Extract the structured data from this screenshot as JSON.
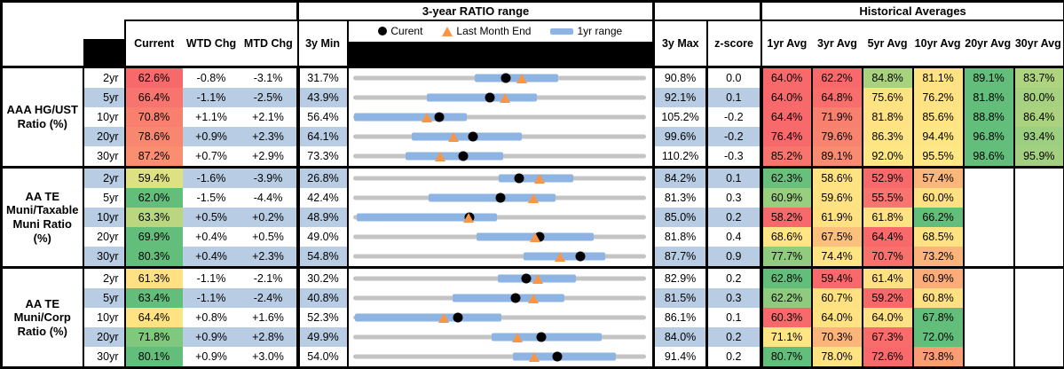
{
  "header": {
    "chart_title": "3-year RATIO range",
    "historical_title": "Historical Averages",
    "col_current": "Current",
    "col_wtd": "WTD Chg",
    "col_mtd": "MTD Chg",
    "col_min": "3y Min",
    "col_max": "3y Max",
    "col_z": "z-score",
    "avg_cols": [
      "1yr Avg",
      "3yr Avg",
      "5yr Avg",
      "10yr Avg",
      "20yr Avg",
      "30yr Avg"
    ],
    "legend": {
      "current": "Curent",
      "last_month": "Last Month End",
      "range": "1yr range"
    }
  },
  "colors": {
    "stripe_blue": "#B8CCE4",
    "range_bar_blue": "#8EB4E3",
    "marker_orange": "#F79646",
    "track_gray": "#C4C4C4",
    "scale_red": "#F8696B",
    "scale_yellow": "#FFE383",
    "scale_green": "#63BE7B"
  },
  "chart_data": {
    "type": "table",
    "embedded_chart_type": "range-bullet (gray = 3y range, blue bar = 1yr range, black dot = current, orange triangle = last month end)",
    "title": "3-year RATIO range",
    "avg_keys": [
      "1yr",
      "3yr",
      "5yr",
      "10yr",
      "20yr",
      "30yr"
    ],
    "groups": [
      {
        "label": "AAA HG/UST Ratio (%)",
        "rows": [
          {
            "tenor": "2yr",
            "current": "62.6%",
            "current_color": "#F8696B",
            "wtd": "-0.8%",
            "mtd": "-3.1%",
            "min": "31.7%",
            "max": "90.8%",
            "z": "0.0",
            "stripe": false,
            "range": {
              "min": 31.7,
              "max": 90.8,
              "bar_lo": 56.3,
              "bar_hi": 73.1,
              "current": 62.6,
              "last_month": 65.7
            },
            "avgs": [
              {
                "v": "64.0%",
                "c": "#F8696B"
              },
              {
                "v": "62.2%",
                "c": "#F8696B"
              },
              {
                "v": "84.8%",
                "c": "#A9D27F"
              },
              {
                "v": "81.1%",
                "c": "#FFE283"
              },
              {
                "v": "89.1%",
                "c": "#63BE7B"
              },
              {
                "v": "83.7%",
                "c": "#AFD47F"
              }
            ]
          },
          {
            "tenor": "5yr",
            "current": "66.4%",
            "current_color": "#F8746E",
            "wtd": "-1.1%",
            "mtd": "-2.5%",
            "min": "43.9%",
            "max": "92.1%",
            "z": "0.1",
            "stripe": true,
            "range": {
              "min": 43.9,
              "max": 92.1,
              "bar_lo": 56.1,
              "bar_hi": 74.1,
              "current": 66.4,
              "last_month": 68.9
            },
            "avgs": [
              {
                "v": "64.0%",
                "c": "#F8696B"
              },
              {
                "v": "64.8%",
                "c": "#F86E6C"
              },
              {
                "v": "75.6%",
                "c": "#FFE383"
              },
              {
                "v": "76.2%",
                "c": "#FFE283"
              },
              {
                "v": "81.8%",
                "c": "#63BE7B"
              },
              {
                "v": "80.0%",
                "c": "#A5D180"
              }
            ]
          },
          {
            "tenor": "10yr",
            "current": "70.8%",
            "current_color": "#F9806F",
            "wtd": "+1.1%",
            "mtd": "+2.1%",
            "min": "56.4%",
            "max": "105.2%",
            "z": "-0.2",
            "stripe": false,
            "range": {
              "min": 56.4,
              "max": 105.2,
              "bar_lo": 56.6,
              "bar_hi": 75.4,
              "current": 70.8,
              "last_month": 68.7
            },
            "avgs": [
              {
                "v": "64.4%",
                "c": "#F8696B"
              },
              {
                "v": "71.9%",
                "c": "#F8806F"
              },
              {
                "v": "81.8%",
                "c": "#FFE283"
              },
              {
                "v": "85.6%",
                "c": "#FFE483"
              },
              {
                "v": "88.8%",
                "c": "#63BE7B"
              },
              {
                "v": "86.4%",
                "c": "#ABD37F"
              }
            ]
          },
          {
            "tenor": "20yr",
            "current": "78.6%",
            "current_color": "#F98770",
            "wtd": "+0.9%",
            "mtd": "+2.3%",
            "min": "64.1%",
            "max": "99.6%",
            "z": "-0.2",
            "stripe": true,
            "range": {
              "min": 64.1,
              "max": 99.6,
              "bar_lo": 71.2,
              "bar_hi": 84.6,
              "current": 78.6,
              "last_month": 76.3
            },
            "avgs": [
              {
                "v": "76.4%",
                "c": "#F8696B"
              },
              {
                "v": "79.6%",
                "c": "#F8846F"
              },
              {
                "v": "86.3%",
                "c": "#FFE483"
              },
              {
                "v": "94.4%",
                "c": "#FFE684"
              },
              {
                "v": "96.8%",
                "c": "#63BE7B"
              },
              {
                "v": "93.4%",
                "c": "#9CCF80"
              }
            ]
          },
          {
            "tenor": "30yr",
            "current": "87.2%",
            "current_color": "#F98F70",
            "wtd": "+0.7%",
            "mtd": "+2.9%",
            "min": "73.3%",
            "max": "110.2%",
            "z": "-0.3",
            "stripe": false,
            "range": {
              "min": 73.3,
              "max": 110.2,
              "bar_lo": 79.9,
              "bar_hi": 92.2,
              "current": 87.2,
              "last_month": 84.3
            },
            "avgs": [
              {
                "v": "85.2%",
                "c": "#F8756E"
              },
              {
                "v": "89.1%",
                "c": "#F98C70"
              },
              {
                "v": "92.0%",
                "c": "#FFE883"
              },
              {
                "v": "95.5%",
                "c": "#FFE784"
              },
              {
                "v": "98.6%",
                "c": "#63BE7B"
              },
              {
                "v": "95.9%",
                "c": "#A3D080"
              }
            ]
          }
        ]
      },
      {
        "label": "AA TE Muni/Taxable Muni Ratio (%)",
        "rows": [
          {
            "tenor": "2yr",
            "current": "59.4%",
            "current_color": "#DEE182",
            "wtd": "-1.6%",
            "mtd": "-3.9%",
            "min": "26.8%",
            "max": "84.2%",
            "z": "0.1",
            "stripe": true,
            "range": {
              "min": 26.8,
              "max": 84.2,
              "bar_lo": 55.3,
              "bar_hi": 70.0,
              "current": 59.4,
              "last_month": 63.3
            },
            "avgs": [
              {
                "v": "62.3%",
                "c": "#68C07C"
              },
              {
                "v": "58.6%",
                "c": "#FFE383"
              },
              {
                "v": "52.9%",
                "c": "#F8696B"
              },
              {
                "v": "57.4%",
                "c": "#FBB67B"
              },
              null,
              null
            ]
          },
          {
            "tenor": "5yr",
            "current": "62.0%",
            "current_color": "#63BE7B",
            "wtd": "-1.5%",
            "mtd": "-4.4%",
            "min": "42.4%",
            "max": "81.3%",
            "z": "0.3",
            "stripe": false,
            "range": {
              "min": 42.4,
              "max": 81.3,
              "bar_lo": 52.4,
              "bar_hi": 69.3,
              "current": 62.0,
              "last_month": 66.4
            },
            "avgs": [
              {
                "v": "60.9%",
                "c": "#99CE7F"
              },
              {
                "v": "59.6%",
                "c": "#FFE383"
              },
              {
                "v": "55.5%",
                "c": "#F8746E"
              },
              {
                "v": "60.0%",
                "c": "#FFE183"
              },
              null,
              null
            ]
          },
          {
            "tenor": "10yr",
            "current": "63.3%",
            "current_color": "#BAD780",
            "wtd": "+0.5%",
            "mtd": "+0.2%",
            "min": "48.9%",
            "max": "85.0%",
            "z": "0.2",
            "stripe": true,
            "range": {
              "min": 48.9,
              "max": 85.0,
              "bar_lo": 49.4,
              "bar_hi": 66.6,
              "current": 63.3,
              "last_month": 63.1
            },
            "avgs": [
              {
                "v": "58.2%",
                "c": "#F8696B"
              },
              {
                "v": "61.9%",
                "c": "#FEE282"
              },
              {
                "v": "61.8%",
                "c": "#FFE382"
              },
              {
                "v": "66.2%",
                "c": "#63BE7B"
              },
              null,
              null
            ]
          },
          {
            "tenor": "20yr",
            "current": "69.9%",
            "current_color": "#63BE7B",
            "wtd": "+0.4%",
            "mtd": "+0.5%",
            "min": "49.0%",
            "max": "81.8%",
            "z": "0.4",
            "stripe": false,
            "range": {
              "min": 49.0,
              "max": 81.8,
              "bar_lo": 62.8,
              "bar_hi": 75.9,
              "current": 69.9,
              "last_month": 69.4
            },
            "avgs": [
              {
                "v": "68.6%",
                "c": "#FFE583"
              },
              {
                "v": "67.5%",
                "c": "#FCC07D"
              },
              {
                "v": "64.4%",
                "c": "#F8696B"
              },
              {
                "v": "68.5%",
                "c": "#FFE383"
              },
              null,
              null
            ]
          },
          {
            "tenor": "30yr",
            "current": "80.3%",
            "current_color": "#63BE7B",
            "wtd": "+0.4%",
            "mtd": "+2.3%",
            "min": "54.8%",
            "max": "87.7%",
            "z": "0.9",
            "stripe": true,
            "range": {
              "min": 54.8,
              "max": 87.7,
              "bar_lo": 74.0,
              "bar_hi": 83.1,
              "current": 80.3,
              "last_month": 78.0
            },
            "avgs": [
              {
                "v": "77.7%",
                "c": "#90CB7E"
              },
              {
                "v": "74.4%",
                "c": "#FFE483"
              },
              {
                "v": "70.7%",
                "c": "#F8716D"
              },
              {
                "v": "73.2%",
                "c": "#FBB47A"
              },
              null,
              null
            ]
          }
        ]
      },
      {
        "label": "AA TE Muni/Corp Ratio (%)",
        "rows": [
          {
            "tenor": "2yr",
            "current": "61.3%",
            "current_color": "#FFE083",
            "wtd": "-1.1%",
            "mtd": "-2.1%",
            "min": "30.2%",
            "max": "82.9%",
            "z": "0.2",
            "stripe": false,
            "range": {
              "min": 30.2,
              "max": 82.9,
              "bar_lo": 56.2,
              "bar_hi": 70.3,
              "current": 61.3,
              "last_month": 63.4
            },
            "avgs": [
              {
                "v": "62.8%",
                "c": "#63BE7B"
              },
              {
                "v": "59.4%",
                "c": "#F8696B"
              },
              {
                "v": "61.4%",
                "c": "#FFE083"
              },
              {
                "v": "60.9%",
                "c": "#FBAC78"
              },
              null,
              null
            ]
          },
          {
            "tenor": "5yr",
            "current": "63.4%",
            "current_color": "#63BE7B",
            "wtd": "-1.1%",
            "mtd": "-2.4%",
            "min": "40.8%",
            "max": "81.5%",
            "z": "0.3",
            "stripe": true,
            "range": {
              "min": 40.8,
              "max": 81.5,
              "bar_lo": 54.6,
              "bar_hi": 70.2,
              "current": 63.4,
              "last_month": 65.8
            },
            "avgs": [
              {
                "v": "62.2%",
                "c": "#8FCA7E"
              },
              {
                "v": "60.7%",
                "c": "#FFE183"
              },
              {
                "v": "59.2%",
                "c": "#F8696B"
              },
              {
                "v": "60.8%",
                "c": "#FFE083"
              },
              null,
              null
            ]
          },
          {
            "tenor": "10yr",
            "current": "64.4%",
            "current_color": "#FFE383",
            "wtd": "+0.8%",
            "mtd": "+1.6%",
            "min": "52.3%",
            "max": "86.1%",
            "z": "0.1",
            "stripe": false,
            "range": {
              "min": 52.3,
              "max": 86.1,
              "bar_lo": 52.6,
              "bar_hi": 69.4,
              "current": 64.4,
              "last_month": 62.8
            },
            "avgs": [
              {
                "v": "60.3%",
                "c": "#F8696B"
              },
              {
                "v": "64.0%",
                "c": "#FFE383"
              },
              {
                "v": "64.0%",
                "c": "#FFE283"
              },
              {
                "v": "67.8%",
                "c": "#63BE7B"
              },
              null,
              null
            ]
          },
          {
            "tenor": "20yr",
            "current": "71.8%",
            "current_color": "#7FC87D",
            "wtd": "+0.9%",
            "mtd": "+2.8%",
            "min": "49.9%",
            "max": "84.0%",
            "z": "0.2",
            "stripe": true,
            "range": {
              "min": 49.9,
              "max": 84.0,
              "bar_lo": 66.0,
              "bar_hi": 78.8,
              "current": 71.8,
              "last_month": 69.0
            },
            "avgs": [
              {
                "v": "71.1%",
                "c": "#FFE583"
              },
              {
                "v": "70.3%",
                "c": "#FBB57A"
              },
              {
                "v": "67.3%",
                "c": "#F86C6C"
              },
              {
                "v": "72.0%",
                "c": "#63BE7B"
              },
              null,
              null
            ]
          },
          {
            "tenor": "30yr",
            "current": "80.1%",
            "current_color": "#63BE7B",
            "wtd": "+0.9%",
            "mtd": "+3.0%",
            "min": "54.0%",
            "max": "91.4%",
            "z": "0.2",
            "stripe": false,
            "range": {
              "min": 54.0,
              "max": 91.4,
              "bar_lo": 74.4,
              "bar_hi": 87.6,
              "current": 80.1,
              "last_month": 77.1
            },
            "avgs": [
              {
                "v": "80.7%",
                "c": "#63BE7B"
              },
              {
                "v": "78.0%",
                "c": "#FFE383"
              },
              {
                "v": "72.6%",
                "c": "#F8696B"
              },
              {
                "v": "73.8%",
                "c": "#FA9C74"
              },
              null,
              null
            ]
          }
        ]
      }
    ]
  }
}
